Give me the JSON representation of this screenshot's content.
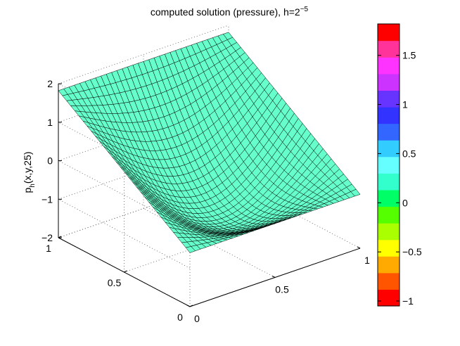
{
  "chart_data": {
    "type": "surface3d",
    "title_prefix": "computed solution (pressure), h=2",
    "title_sup": "−5",
    "zlabel_main": "p",
    "zlabel_sub": "h",
    "zlabel_rest": "(x,y,25)",
    "x_ticks": [
      {
        "v": 0,
        "label": "0"
      },
      {
        "v": 0.5,
        "label": "0.5"
      },
      {
        "v": 1,
        "label": "1"
      }
    ],
    "y_ticks": [
      {
        "v": 0,
        "label": "0"
      },
      {
        "v": 0.5,
        "label": "0.5"
      },
      {
        "v": 1,
        "label": "1"
      }
    ],
    "z_ticks": [
      {
        "v": -2,
        "label": "−2"
      },
      {
        "v": -1,
        "label": "−1"
      },
      {
        "v": 0,
        "label": "0"
      },
      {
        "v": 1,
        "label": "1"
      },
      {
        "v": 2,
        "label": "2"
      }
    ],
    "xlim": [
      0,
      1
    ],
    "ylim": [
      0,
      1
    ],
    "zlim": [
      -2,
      2
    ],
    "grid": true,
    "grid_resolution": 32,
    "surface": {
      "corner_values": {
        "x0_y0": -0.6,
        "x1_y0": -0.6,
        "x0_y1": 1.82,
        "x1_y1": 1.82
      },
      "minimum": {
        "x": 0.55,
        "y": 0.5,
        "value": -1.05
      },
      "face_color": "#66ffcc",
      "edge_color": "#000000"
    },
    "colorbar": {
      "range": [
        -1.05,
        1.82
      ],
      "ticks": [
        {
          "v": 1.5,
          "label": "1.5"
        },
        {
          "v": 1,
          "label": "1"
        },
        {
          "v": 0.5,
          "label": "0.5"
        },
        {
          "v": 0,
          "label": "0"
        },
        {
          "v": -0.5,
          "label": "−0.5"
        },
        {
          "v": -1,
          "label": "−1"
        }
      ],
      "colors": [
        "#ff0000",
        "#ff5500",
        "#ffaa00",
        "#ffff00",
        "#aaff00",
        "#55ff00",
        "#00ff66",
        "#33ffcc",
        "#66ffff",
        "#33ccff",
        "#3366ff",
        "#3333ff",
        "#6633ff",
        "#cc33ff",
        "#ff33ff",
        "#ff3399",
        "#ff0000"
      ]
    }
  }
}
